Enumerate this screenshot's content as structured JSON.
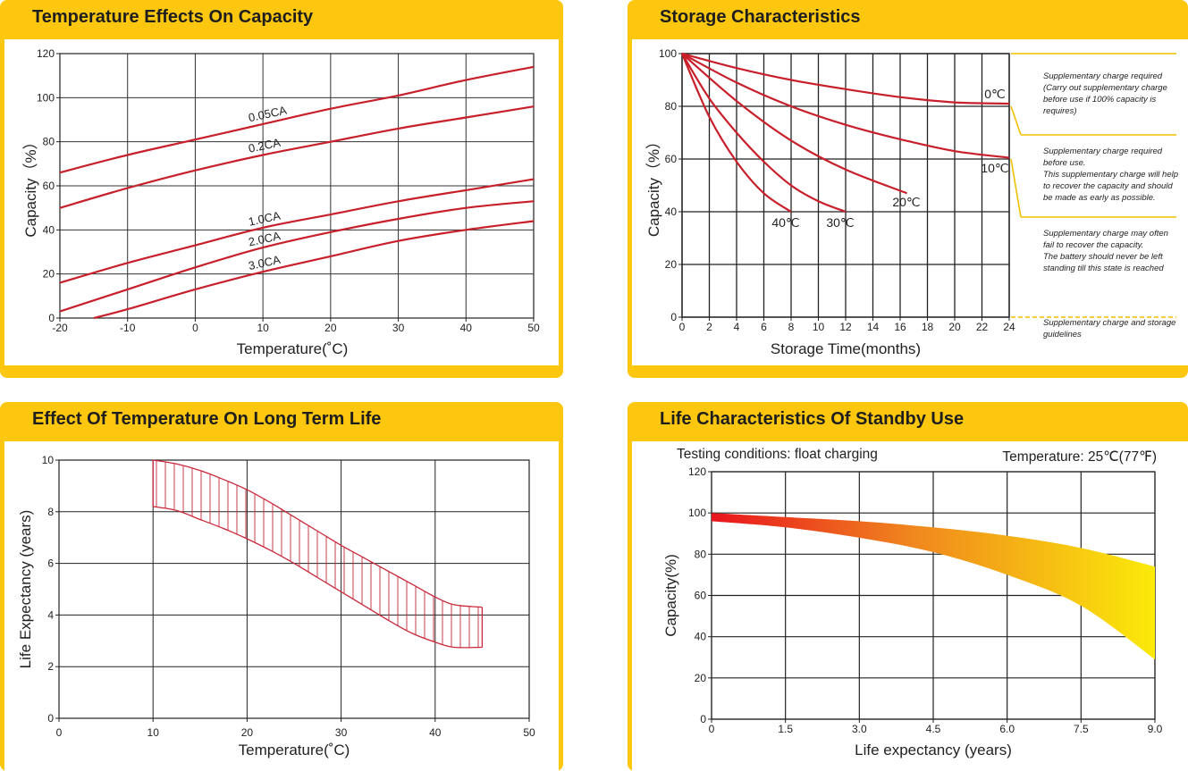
{
  "chart_data": [
    {
      "type": "line",
      "title": "Temperature Effects On Capacity",
      "xlabel": "Temperature(˚C)",
      "ylabel": "Capacity（%）",
      "xlim": [
        -20,
        50
      ],
      "ylim": [
        0,
        120
      ],
      "xticks": [
        -20,
        -10,
        0,
        10,
        20,
        30,
        40,
        50
      ],
      "xtick_labels": [
        "-20",
        "-10",
        "0",
        "10",
        "20",
        "30",
        "40",
        "50"
      ],
      "yticks": [
        0,
        20,
        40,
        60,
        80,
        100,
        120
      ],
      "grid": true,
      "series": [
        {
          "name": "0.05CA",
          "x": [
            -20,
            -10,
            0,
            10,
            20,
            30,
            40,
            50
          ],
          "values": [
            66,
            74,
            81,
            88,
            95,
            101,
            108,
            114
          ]
        },
        {
          "name": "0.2CA",
          "x": [
            -20,
            -10,
            0,
            10,
            20,
            30,
            40,
            50
          ],
          "values": [
            50,
            59,
            67,
            74,
            80,
            86,
            91,
            96
          ]
        },
        {
          "name": "1.0CA",
          "x": [
            -20,
            -10,
            0,
            10,
            20,
            30,
            40,
            50
          ],
          "values": [
            16,
            25,
            33,
            41,
            47,
            53,
            58,
            63
          ]
        },
        {
          "name": "2.0CA",
          "x": [
            -20,
            -10,
            0,
            10,
            20,
            30,
            40,
            50
          ],
          "values": [
            3,
            13,
            23,
            32,
            39,
            45,
            50,
            53
          ]
        },
        {
          "name": "3.0CA",
          "x": [
            -15,
            -10,
            0,
            10,
            20,
            30,
            40,
            50
          ],
          "values": [
            0,
            4,
            13,
            21,
            28,
            35,
            40,
            44
          ]
        }
      ]
    },
    {
      "type": "line",
      "title": "Storage Characteristics",
      "xlabel": "Storage  Time(months)",
      "ylabel": "Capacity（%）",
      "xlim": [
        0,
        24
      ],
      "ylim": [
        0,
        100
      ],
      "xticks": [
        0,
        2,
        4,
        6,
        8,
        10,
        12,
        14,
        16,
        18,
        20,
        22,
        24
      ],
      "yticks": [
        0,
        20,
        40,
        60,
        80,
        100
      ],
      "grid": true,
      "series": [
        {
          "name": "0℃",
          "x": [
            0,
            4,
            8,
            12,
            16,
            20,
            24
          ],
          "values": [
            100,
            94.5,
            90,
            86.5,
            83.5,
            81.5,
            81
          ]
        },
        {
          "name": "10℃",
          "x": [
            0,
            4,
            8,
            12,
            16,
            20,
            24
          ],
          "values": [
            100,
            89,
            80,
            73,
            67.5,
            63,
            60.5
          ]
        },
        {
          "name": "20℃",
          "x": [
            0,
            4,
            8,
            12,
            16.5
          ],
          "values": [
            100,
            82,
            67,
            56,
            47
          ]
        },
        {
          "name": "30℃",
          "x": [
            0,
            2,
            4,
            6,
            8,
            10,
            12
          ],
          "values": [
            100,
            83,
            70,
            59,
            50,
            44,
            40
          ]
        },
        {
          "name": "40℃",
          "x": [
            0,
            2,
            4,
            6,
            8
          ],
          "values": [
            100,
            76,
            59,
            47,
            40
          ]
        }
      ],
      "annotations": [
        {
          "label": "Supplementary charge required\n(Carry out supplementary charge\nbefore use if 100% capacity is\nrequires)",
          "range": [
            80,
            100
          ]
        },
        {
          "label": "Supplementary charge required\nbefore use.\nThis supplementary charge will help\nto recover the capacity and should\nbe made  as early as possible.",
          "range": [
            60,
            80
          ]
        },
        {
          "label": "Supplementary charge may often\nfail to recover the capacity.\nThe battery should never be left\nstanding till this state is reached",
          "range": [
            0,
            60
          ]
        },
        {
          "label": "Supplementary charge and storage\nguidelines",
          "range": [
            0,
            0
          ]
        }
      ]
    },
    {
      "type": "area",
      "title": "Effect Of Temperature On Long Term Life",
      "xlabel": "Temperature(˚C)",
      "ylabel": "Life Expectancy  (years)",
      "xlim": [
        0,
        50
      ],
      "ylim": [
        0,
        10
      ],
      "xticks": [
        0,
        10,
        20,
        30,
        40,
        50
      ],
      "yticks": [
        0,
        2,
        4,
        6,
        8,
        10
      ],
      "grid": true,
      "series": [
        {
          "name": "upper",
          "x": [
            10,
            12.5,
            15,
            17.5,
            20,
            22.5,
            25,
            27.5,
            30,
            32.5,
            35,
            37.5,
            40,
            42,
            45
          ],
          "values": [
            10,
            9.85,
            9.6,
            9.25,
            8.85,
            8.35,
            7.8,
            7.25,
            6.7,
            6.2,
            5.7,
            5.2,
            4.7,
            4.4,
            4.3
          ]
        },
        {
          "name": "lower",
          "x": [
            10,
            12.5,
            15,
            17.5,
            20,
            22.5,
            25,
            27.5,
            30,
            32.5,
            35,
            37.5,
            40,
            42,
            45
          ],
          "values": [
            8.2,
            8.05,
            7.7,
            7.35,
            6.95,
            6.5,
            6.0,
            5.45,
            4.9,
            4.35,
            3.8,
            3.3,
            2.95,
            2.75,
            2.75
          ]
        }
      ]
    },
    {
      "type": "area",
      "title": "Life Characteristics Of Standby Use",
      "subtitle_left": "Testing conditions: float charging",
      "subtitle_right": "Temperature: 25℃(77℉)",
      "xlabel": "Life expectancy (years)",
      "ylabel": "Capacity(%)",
      "xlim": [
        0,
        9
      ],
      "ylim": [
        0,
        120
      ],
      "xticks": [
        0,
        1.5,
        3.0,
        4.5,
        6.0,
        7.5,
        9.0
      ],
      "xtick_labels": [
        "0",
        "1.5",
        "3.0",
        "4.5",
        "6.0",
        "7.5",
        "9.0"
      ],
      "yticks": [
        0,
        20,
        40,
        60,
        80,
        100,
        120
      ],
      "grid": true,
      "series": [
        {
          "name": "upper",
          "x": [
            0,
            1.5,
            3.0,
            4.5,
            6.0,
            7.5,
            9.0
          ],
          "values": [
            100,
            98,
            96,
            93,
            89,
            83,
            74
          ]
        },
        {
          "name": "lower",
          "x": [
            0,
            1.5,
            3.0,
            4.5,
            6.0,
            7.5,
            9.0
          ],
          "values": [
            96,
            93,
            88,
            81,
            70,
            55,
            29
          ]
        }
      ]
    }
  ]
}
